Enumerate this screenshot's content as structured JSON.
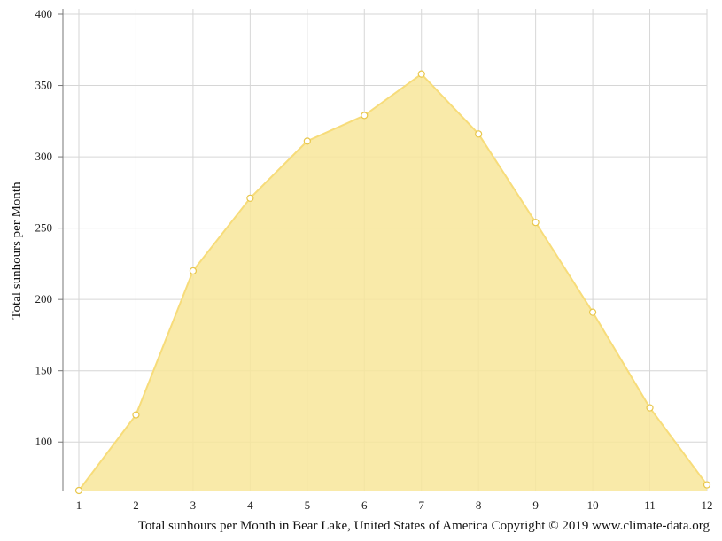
{
  "chart_data": {
    "type": "area",
    "x": [
      1,
      2,
      3,
      4,
      5,
      6,
      7,
      8,
      9,
      10,
      11,
      12
    ],
    "categories": [
      "1",
      "2",
      "3",
      "4",
      "5",
      "6",
      "7",
      "8",
      "9",
      "10",
      "11",
      "12"
    ],
    "series": [
      {
        "values": [
          66,
          119,
          220,
          271,
          311,
          329,
          358,
          316,
          254,
          191,
          124,
          70
        ]
      }
    ],
    "title": "",
    "xlabel": "",
    "ylabel": "Total sunhours per Month",
    "ylim": [
      66,
      400
    ],
    "yticks": [
      100,
      150,
      200,
      250,
      300,
      350,
      400
    ],
    "grid": true,
    "colors": {
      "fill": "#f8e69a",
      "line": "#f7dc7a",
      "marker_fill": "#ffffff",
      "marker_stroke": "#e8c64a"
    },
    "caption": "Total sunhours per Month in Bear Lake, United States of America Copyright © 2019 www.climate-data.org"
  }
}
